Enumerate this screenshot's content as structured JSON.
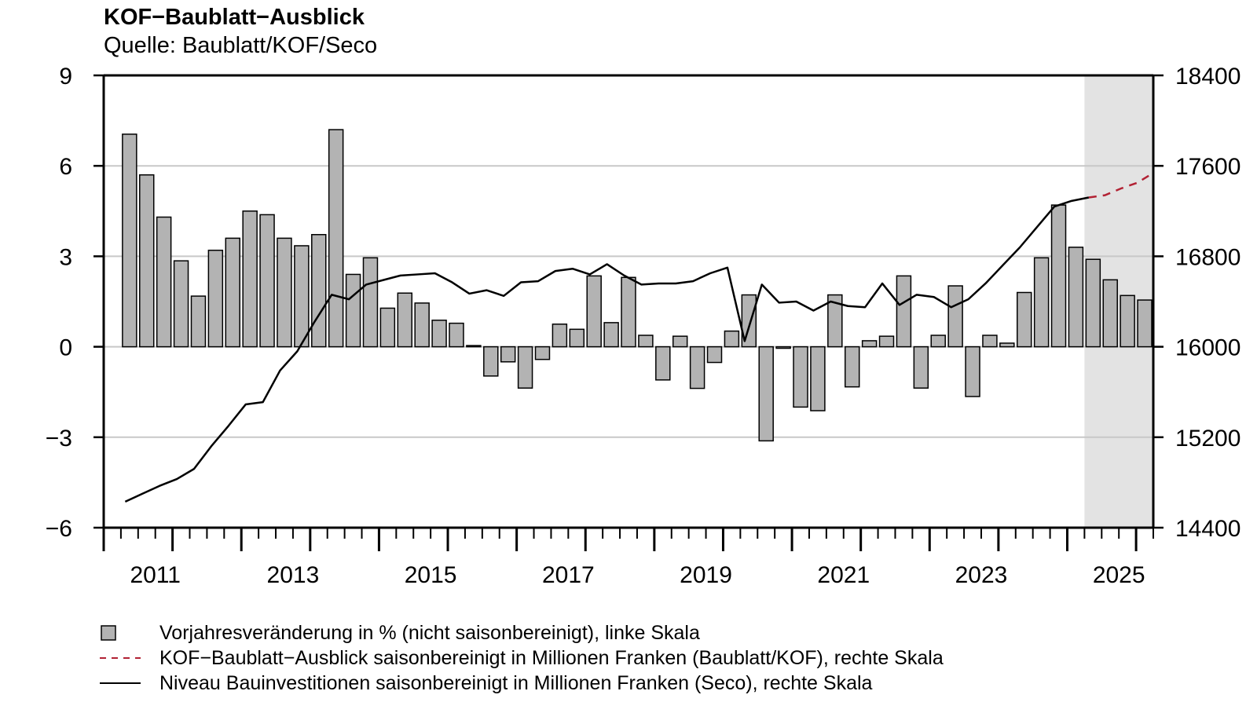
{
  "title": "KOF−Baublatt−Ausblick",
  "subtitle": "Quelle: Baublatt/KOF/Seco",
  "legend": {
    "bars": "Vorjahresveränderung in % (nicht saisonbereinigt), linke Skala",
    "forecast": "KOF−Baublatt−Ausblick saisonbereinigt in Millionen Franken (Baublatt/KOF), rechte Skala",
    "level": "Niveau Bauinvestitionen saisonbereinigt in Millionen Franken (Seco), rechte Skala"
  },
  "colors": {
    "bar_fill": "#b3b3b3",
    "forecast_line": "#b22234",
    "level_line": "#000000",
    "forecast_shade": "#e3e3e3",
    "grid": "#c8c8c8"
  },
  "chart_data": {
    "type": "bar+line",
    "x_range": [
      2010.75,
      2026.0
    ],
    "x_tick_labels": [
      "2011",
      "2013",
      "2015",
      "2017",
      "2019",
      "2021",
      "2023",
      "2025"
    ],
    "x_tick_values": [
      2011,
      2013,
      2015,
      2017,
      2019,
      2021,
      2023,
      2025
    ],
    "forecast_shade_range": [
      2025.0,
      2026.0
    ],
    "left_axis": {
      "ylim": [
        -6,
        9
      ],
      "ticks": [
        "−6",
        "−3",
        "0",
        "3",
        "6",
        "9"
      ],
      "tick_values": [
        -6,
        -3,
        0,
        3,
        6,
        9
      ]
    },
    "right_axis": {
      "ylim": [
        14400,
        18400
      ],
      "ticks": [
        "14400",
        "15200",
        "16000",
        "16800",
        "17600",
        "18400"
      ],
      "tick_values": [
        14400,
        15200,
        16000,
        16800,
        17600,
        18400
      ]
    },
    "bars": {
      "name": "Vorjahresveränderung in % (nicht saisonbereinigt), linke Skala",
      "start_year": 2011,
      "quarters_per_year": 4,
      "values": [
        7.05,
        5.7,
        4.3,
        2.85,
        1.68,
        3.2,
        3.6,
        4.5,
        4.38,
        3.6,
        3.35,
        3.72,
        7.2,
        2.4,
        2.95,
        1.28,
        1.78,
        1.45,
        0.88,
        0.78,
        0.04,
        -0.97,
        -0.5,
        -1.37,
        -0.42,
        0.75,
        0.58,
        2.35,
        0.8,
        2.3,
        0.38,
        -1.1,
        0.35,
        -1.38,
        -0.52,
        0.52,
        1.72,
        -3.12,
        -0.05,
        -2.0,
        -2.12,
        1.72,
        -1.33,
        0.2,
        0.35,
        2.35,
        -1.37,
        0.38,
        2.02,
        -1.65,
        0.38,
        0.12,
        1.8,
        2.95,
        4.7,
        3.3,
        2.9,
        2.22,
        1.7,
        1.55
      ]
    },
    "level": {
      "name": "Niveau Bauinvestitionen saisonbereinigt in Millionen Franken (Seco), rechte Skala",
      "x": [
        2011.0,
        2011.25,
        2011.5,
        2011.75,
        2012.0,
        2012.25,
        2012.5,
        2012.75,
        2013.0,
        2013.25,
        2013.5,
        2013.75,
        2014.0,
        2014.25,
        2014.5,
        2014.75,
        2015.0,
        2015.25,
        2015.5,
        2015.75,
        2016.0,
        2016.25,
        2016.5,
        2016.75,
        2017.0,
        2017.25,
        2017.5,
        2017.75,
        2018.0,
        2018.25,
        2018.5,
        2018.75,
        2019.0,
        2019.25,
        2019.5,
        2019.75,
        2020.0,
        2020.25,
        2020.5,
        2020.75,
        2021.0,
        2021.25,
        2021.5,
        2021.75,
        2022.0,
        2022.25,
        2022.5,
        2022.75,
        2023.0,
        2023.25,
        2023.5,
        2023.75,
        2024.0,
        2024.25,
        2024.5,
        2024.75,
        2025.0
      ],
      "y": [
        14630,
        14700,
        14770,
        14830,
        14920,
        15120,
        15300,
        15490,
        15510,
        15790,
        15960,
        16220,
        16460,
        16420,
        16550,
        16590,
        16630,
        16640,
        16650,
        16570,
        16470,
        16500,
        16450,
        16570,
        16580,
        16670,
        16690,
        16640,
        16730,
        16630,
        16550,
        16560,
        16560,
        16580,
        16650,
        16700,
        16050,
        16550,
        16390,
        16400,
        16320,
        16400,
        16360,
        16350,
        16560,
        16370,
        16460,
        16440,
        16350,
        16420,
        16560,
        16720,
        16880,
        17060,
        17240,
        17290,
        17320
      ]
    },
    "forecast": {
      "name": "KOF−Baublatt−Ausblick saisonbereinigt in Millionen Franken (Baublatt/KOF), rechte Skala",
      "x": [
        2025.0,
        2025.25,
        2025.5,
        2025.75,
        2026.0
      ],
      "y": [
        17320,
        17340,
        17400,
        17450,
        17530
      ]
    }
  }
}
